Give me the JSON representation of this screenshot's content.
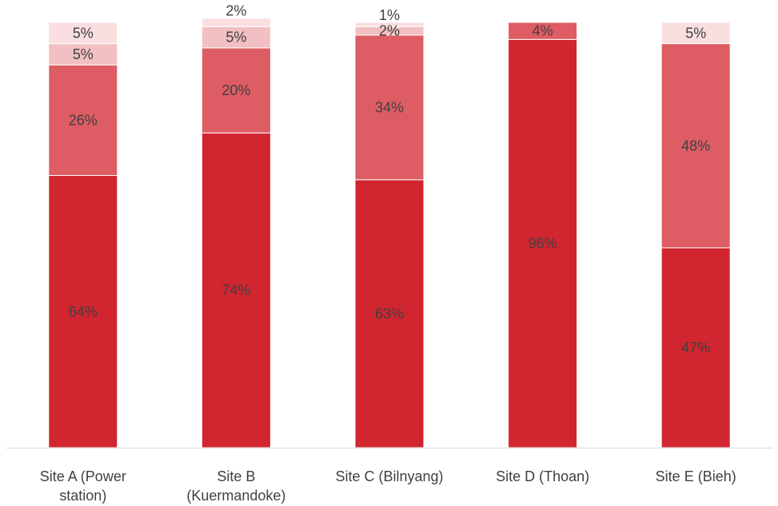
{
  "chart_data": {
    "type": "bar",
    "stacked": true,
    "categories": [
      [
        "Site A (Power",
        "station)"
      ],
      [
        "Site B",
        "(Kuermandoke)"
      ],
      [
        "Site C (Bilnyang)"
      ],
      [
        "Site D (Thoan)"
      ],
      [
        "Site E (Bieh)"
      ]
    ],
    "series": [
      {
        "values": [
          64,
          74,
          63,
          96,
          47
        ],
        "color": "#d12530",
        "labels": [
          "64%",
          "74%",
          "63%",
          "96%",
          "47%"
        ]
      },
      {
        "values": [
          26,
          20,
          34,
          4,
          48
        ],
        "color": "#de5c63",
        "labels": [
          "26%",
          "20%",
          "34%",
          "4%",
          "48%"
        ]
      },
      {
        "values": [
          5,
          5,
          2,
          0,
          0
        ],
        "color": "#f2bfc2",
        "labels": [
          "5%",
          "5%",
          "2%",
          "",
          ""
        ]
      },
      {
        "values": [
          5,
          2,
          1,
          0,
          5
        ],
        "color": "#f9dfe0",
        "labels": [
          "5%",
          "2%",
          "1%",
          "",
          "5%"
        ]
      }
    ],
    "ylim": [
      0,
      100
    ],
    "title": "",
    "xlabel": "",
    "ylabel": "",
    "grid": false,
    "legend": "none"
  }
}
